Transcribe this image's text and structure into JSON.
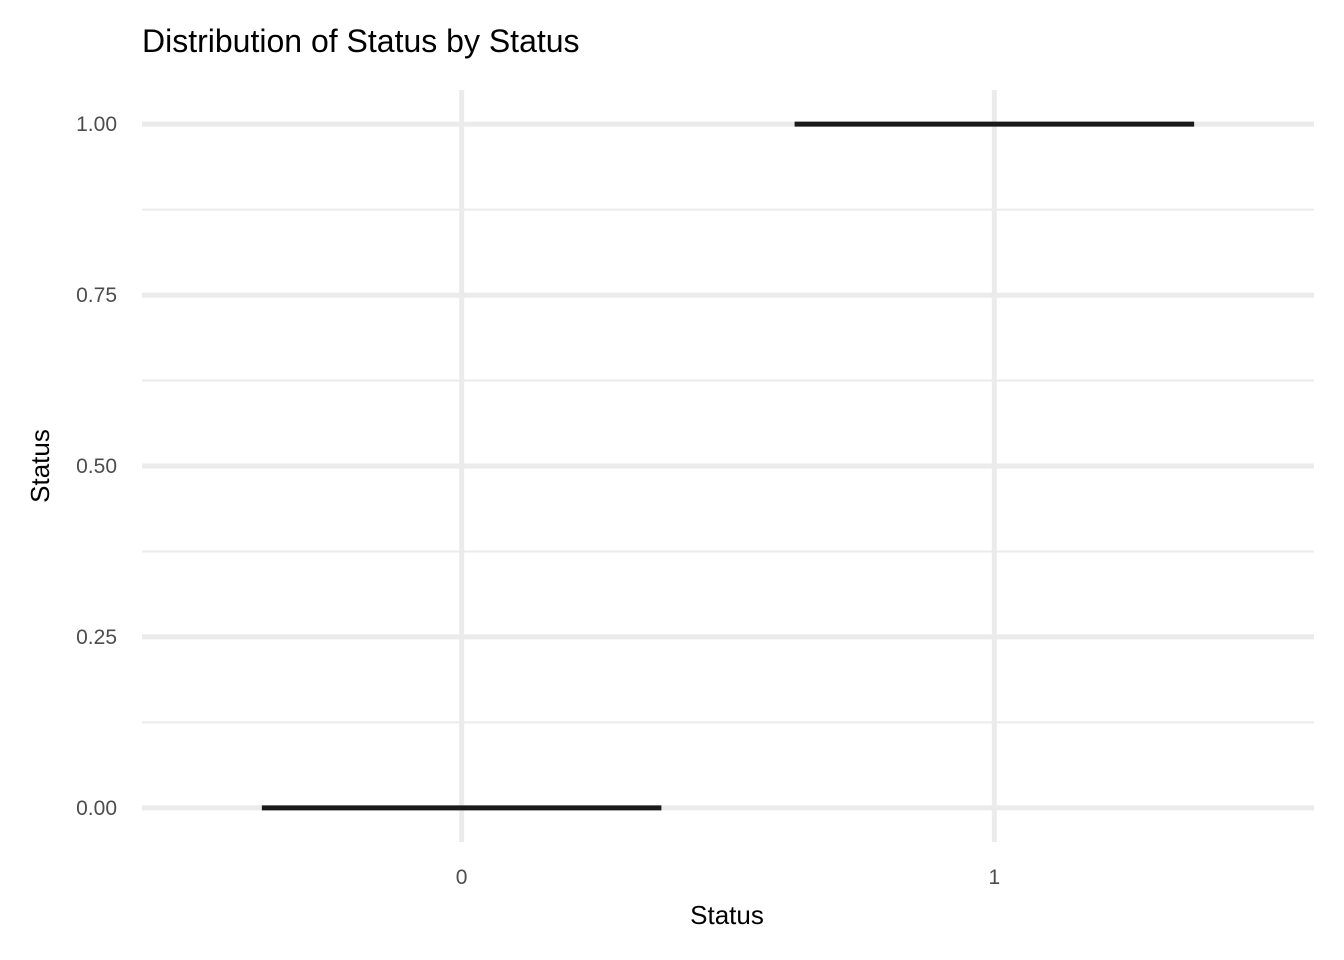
{
  "chart_data": {
    "type": "box",
    "title": "Distribution of Status by Status",
    "xlabel": "Status",
    "ylabel": "Status",
    "categories": [
      "0",
      "1"
    ],
    "boxes": [
      {
        "category": "0",
        "min": 0,
        "q1": 0,
        "median": 0,
        "q3": 0,
        "max": 0
      },
      {
        "category": "1",
        "min": 1,
        "q1": 1,
        "median": 1,
        "q3": 1,
        "max": 1
      }
    ],
    "ylim": [
      -0.05,
      1.05
    ],
    "y_ticks": [
      0.0,
      0.25,
      0.5,
      0.75,
      1.0
    ],
    "y_tick_labels": [
      "0.00",
      "0.25",
      "0.50",
      "0.75",
      "1.00"
    ],
    "grid": true,
    "legend": "none",
    "colors": {
      "box": "#1a1a1a",
      "grid": "#ebebeb",
      "tick_text": "#4d4d4d",
      "text": "#000000",
      "background": "#ffffff"
    }
  }
}
